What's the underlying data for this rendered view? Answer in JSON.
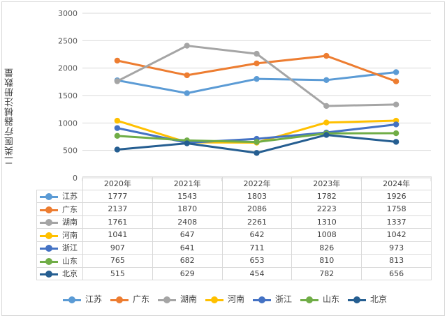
{
  "chart_data": {
    "type": "line",
    "ylabel": "二类医疗器械注册数量",
    "categories": [
      "2020年",
      "2021年",
      "2022年",
      "2023年",
      "2024年"
    ],
    "ylim": [
      0,
      3000
    ],
    "yticks": [
      0,
      500,
      1000,
      1500,
      2000,
      2500,
      3000
    ],
    "grid": true,
    "legend_position": "bottom",
    "series": [
      {
        "name": "江苏",
        "color": "#5B9BD5",
        "values": [
          1777,
          1543,
          1803,
          1782,
          1926
        ]
      },
      {
        "name": "广东",
        "color": "#ED7D31",
        "values": [
          2137,
          1870,
          2086,
          2223,
          1758
        ]
      },
      {
        "name": "湖南",
        "color": "#A5A5A5",
        "values": [
          1761,
          2408,
          2261,
          1310,
          1337
        ]
      },
      {
        "name": "河南",
        "color": "#FFC000",
        "values": [
          1041,
          647,
          642,
          1008,
          1042
        ]
      },
      {
        "name": "浙江",
        "color": "#4472C4",
        "values": [
          907,
          641,
          711,
          826,
          973
        ]
      },
      {
        "name": "山东",
        "color": "#70AD47",
        "values": [
          765,
          682,
          653,
          810,
          813
        ]
      },
      {
        "name": "北京",
        "color": "#255E91",
        "values": [
          515,
          629,
          454,
          782,
          656
        ]
      }
    ]
  }
}
